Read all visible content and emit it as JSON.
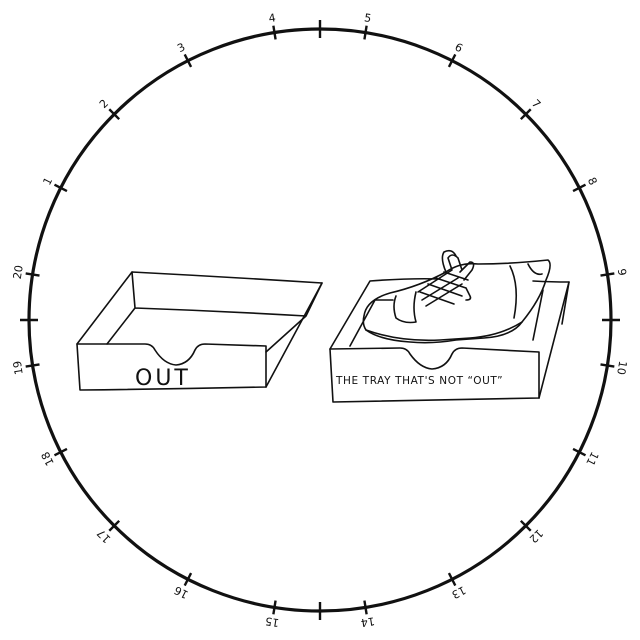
{
  "dial": {
    "labels": [
      "1",
      "2",
      "3",
      "4",
      "5",
      "6",
      "7",
      "8",
      "9",
      "10",
      "11",
      "12",
      "13",
      "14",
      "15",
      "16",
      "17",
      "18",
      "19",
      "20"
    ],
    "color": "#111111"
  },
  "left_tray": {
    "label": "OUT"
  },
  "right_tray": {
    "caption": "THE TRAY THAT'S NOT “OUT”",
    "contents": "shoe-drawing"
  }
}
